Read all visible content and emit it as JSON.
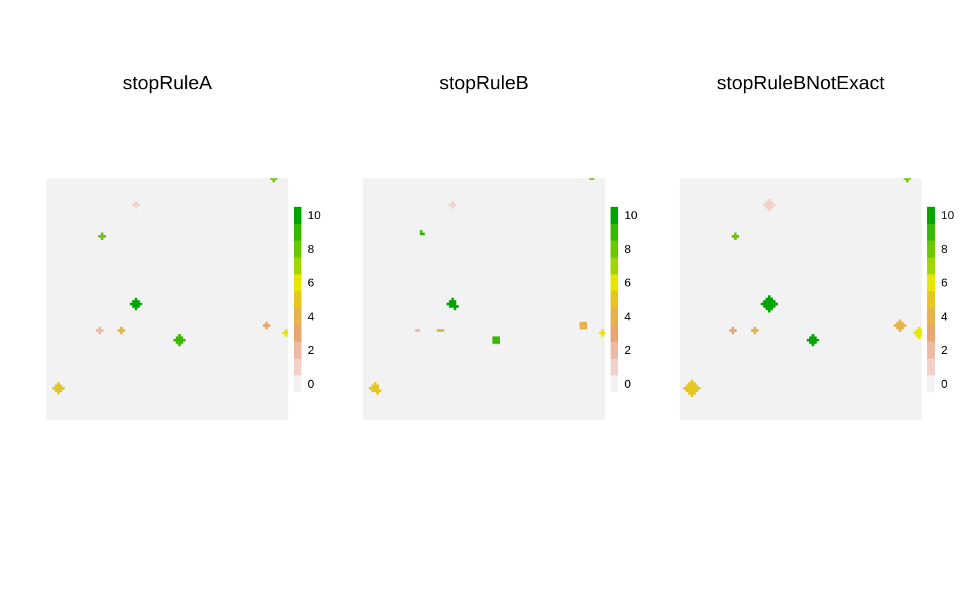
{
  "chart_data": [
    {
      "type": "heatmap",
      "title": "stopRuleA",
      "extent": [
        0,
        100
      ],
      "background_value": 0,
      "legend": {
        "ticks": [
          0,
          2,
          4,
          6,
          8,
          10
        ],
        "colors": [
          "#f2f2f2",
          "#f1d2c9",
          "#edbaa6",
          "#e7a672",
          "#e7b34c",
          "#e6c621",
          "#e6e600",
          "#a0d600",
          "#6cc800",
          "#37b900",
          "#00a600"
        ]
      },
      "patches": [
        {
          "x": 94,
          "y": 100,
          "value": 8,
          "shape": "plus",
          "size": 1
        },
        {
          "x": 37,
          "y": 89,
          "value": 1,
          "shape": "plus",
          "size": 1
        },
        {
          "x": 23,
          "y": 76,
          "value": 8,
          "shape": "plus",
          "size": 1
        },
        {
          "x": 37,
          "y": 48,
          "value": 10,
          "shape": "plus",
          "size": 2
        },
        {
          "x": 22,
          "y": 37,
          "value": 2,
          "shape": "plus",
          "size": 1
        },
        {
          "x": 31,
          "y": 37,
          "value": 4,
          "shape": "plus",
          "size": 1
        },
        {
          "x": 55,
          "y": 33,
          "value": 9,
          "shape": "plus",
          "size": 2
        },
        {
          "x": 91,
          "y": 39,
          "value": 3,
          "shape": "plus",
          "size": 1
        },
        {
          "x": 99,
          "y": 36,
          "value": 6,
          "shape": "plus",
          "size": 1
        },
        {
          "x": 5,
          "y": 13,
          "value": 5,
          "shape": "plus",
          "size": 2
        }
      ]
    },
    {
      "type": "heatmap",
      "title": "stopRuleB",
      "extent": [
        0,
        100
      ],
      "background_value": 0,
      "legend": {
        "ticks": [
          0,
          2,
          4,
          6,
          8,
          10
        ],
        "colors": [
          "#f2f2f2",
          "#f1d2c9",
          "#edbaa6",
          "#e7a672",
          "#e7b34c",
          "#e6c621",
          "#e6e600",
          "#a0d600",
          "#6cc800",
          "#37b900",
          "#00a600"
        ]
      },
      "patches": [
        {
          "x": 94,
          "y": 100,
          "value": 8,
          "shape": "corner",
          "size": 1
        },
        {
          "x": 37,
          "y": 89,
          "value": 1,
          "shape": "plus",
          "size": 1
        },
        {
          "x": 24,
          "y": 77,
          "value": 9,
          "shape": "corner",
          "size": 1
        },
        {
          "x": 37,
          "y": 48,
          "value": 10,
          "shape": "blob",
          "size": 2
        },
        {
          "x": 22,
          "y": 37,
          "value": 2,
          "shape": "square",
          "size": 1
        },
        {
          "x": 32,
          "y": 37,
          "value": 4,
          "shape": "bar",
          "size": 1
        },
        {
          "x": 55,
          "y": 33,
          "value": 9,
          "shape": "square",
          "size": 2
        },
        {
          "x": 91,
          "y": 39,
          "value": 4,
          "shape": "square",
          "size": 2
        },
        {
          "x": 99,
          "y": 36,
          "value": 6,
          "shape": "plus",
          "size": 1
        },
        {
          "x": 5,
          "y": 13,
          "value": 5,
          "shape": "blob",
          "size": 2
        }
      ]
    },
    {
      "type": "heatmap",
      "title": "stopRuleBNotExact",
      "extent": [
        0,
        100
      ],
      "background_value": 0,
      "legend": {
        "ticks": [
          0,
          2,
          4,
          6,
          8,
          10
        ],
        "colors": [
          "#f2f2f2",
          "#f1d2c9",
          "#edbaa6",
          "#e7a672",
          "#e7b34c",
          "#e6c621",
          "#e6e600",
          "#a0d600",
          "#6cc800",
          "#37b900",
          "#00a600"
        ]
      },
      "patches": [
        {
          "x": 94,
          "y": 100,
          "value": 8,
          "shape": "plus",
          "size": 1
        },
        {
          "x": 37,
          "y": 89,
          "value": 1,
          "shape": "plus",
          "size": 2
        },
        {
          "x": 23,
          "y": 76,
          "value": 8,
          "shape": "plus",
          "size": 1
        },
        {
          "x": 37,
          "y": 48,
          "value": 10,
          "shape": "plus",
          "size": 3
        },
        {
          "x": 22,
          "y": 37,
          "value": 3,
          "shape": "plus",
          "size": 1
        },
        {
          "x": 31,
          "y": 37,
          "value": 4,
          "shape": "plus",
          "size": 1
        },
        {
          "x": 55,
          "y": 33,
          "value": 10,
          "shape": "plus",
          "size": 2
        },
        {
          "x": 91,
          "y": 39,
          "value": 4,
          "shape": "plus",
          "size": 2
        },
        {
          "x": 99,
          "y": 36,
          "value": 6,
          "shape": "plus",
          "size": 2
        },
        {
          "x": 5,
          "y": 13,
          "value": 5,
          "shape": "plus",
          "size": 3
        }
      ]
    }
  ]
}
